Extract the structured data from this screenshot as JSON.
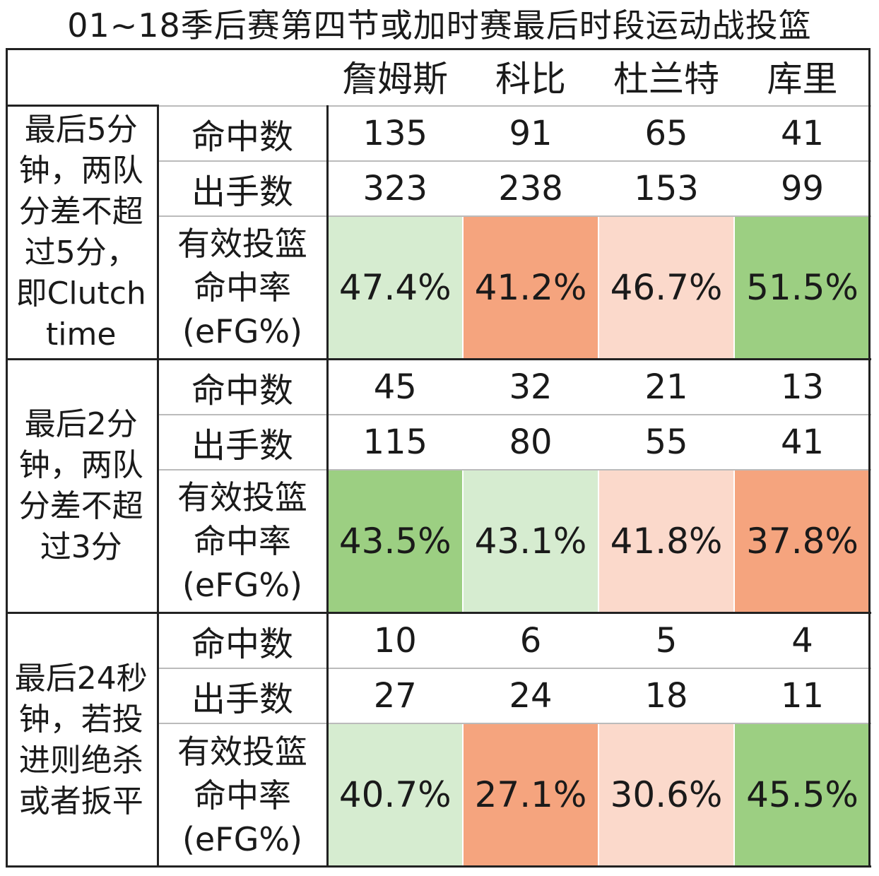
{
  "title": "01~18季后赛第四节或加时赛最后时段运动战投篮",
  "chart_data": {
    "type": "table",
    "players": [
      "詹姆斯",
      "科比",
      "杜兰特",
      "库里"
    ],
    "metrics": [
      "命中数",
      "出手数",
      "有效投篮命中率(eFG%)"
    ],
    "metric_lines": [
      "有效投篮",
      "命中率",
      "(eFG%)"
    ],
    "groups": [
      {
        "label_lines": [
          "最后5分",
          "钟，两队",
          "分差不超",
          "过5分，",
          "即Clutch",
          "time"
        ],
        "made": [
          "135",
          "91",
          "65",
          "41"
        ],
        "attempts": [
          "323",
          "238",
          "153",
          "99"
        ],
        "efg": [
          "47.4%",
          "41.2%",
          "46.7%",
          "51.5%"
        ],
        "colors": [
          "#d6ecd0",
          "#f5a47e",
          "#fbd9cb",
          "#9ccf82"
        ]
      },
      {
        "label_lines": [
          "最后2分",
          "钟，两队",
          "分差不超",
          "过3分"
        ],
        "made": [
          "45",
          "32",
          "21",
          "13"
        ],
        "attempts": [
          "115",
          "80",
          "55",
          "41"
        ],
        "efg": [
          "43.5%",
          "43.1%",
          "41.8%",
          "37.8%"
        ],
        "colors": [
          "#9ccf82",
          "#d6ecd0",
          "#fbd9cb",
          "#f5a47e"
        ]
      },
      {
        "label_lines": [
          "最后24秒",
          "钟，若投",
          "进则绝杀",
          "或者扳平"
        ],
        "made": [
          "10",
          "6",
          "5",
          "4"
        ],
        "attempts": [
          "27",
          "24",
          "18",
          "11"
        ],
        "efg": [
          "40.7%",
          "27.1%",
          "30.6%",
          "45.5%"
        ],
        "colors": [
          "#d6ecd0",
          "#f5a47e",
          "#fbd9cb",
          "#9ccf82"
        ]
      }
    ]
  }
}
